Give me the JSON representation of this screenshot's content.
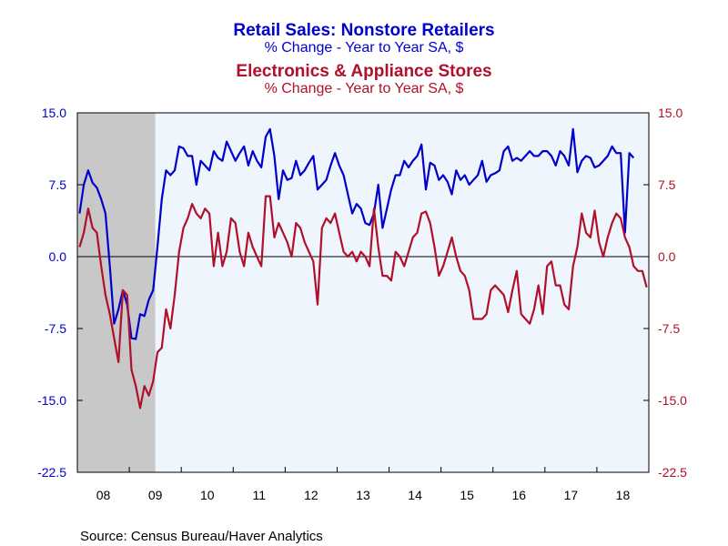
{
  "chart_data": {
    "type": "line",
    "series": [
      {
        "name": "Retail Sales: Nonstore Retailers",
        "subtitle": "% Change - Year to Year    SA, $",
        "color": "#0000cc",
        "axis": "left",
        "start": "2008-01",
        "values": [
          4.5,
          7.5,
          9.0,
          7.7,
          7.2,
          6.0,
          4.5,
          -1.0,
          -7.0,
          -5.5,
          -3.5,
          -5.0,
          -8.5,
          -8.6,
          -6.0,
          -6.2,
          -4.5,
          -3.5,
          1.0,
          6.0,
          9.0,
          8.5,
          9.0,
          11.5,
          11.3,
          10.5,
          10.5,
          7.5,
          10.0,
          9.5,
          9.0,
          11.0,
          10.3,
          10.0,
          12.0,
          11.0,
          10.0,
          10.8,
          11.5,
          9.5,
          11.0,
          10.0,
          9.3,
          12.5,
          13.3,
          10.5,
          6.0,
          9.0,
          8.0,
          8.2,
          10.0,
          8.5,
          9.0,
          9.8,
          10.5,
          7.0,
          7.5,
          8.0,
          9.5,
          10.8,
          9.5,
          8.5,
          6.5,
          4.5,
          5.5,
          5.0,
          3.5,
          3.3,
          4.5,
          7.5,
          3.0,
          5.0,
          7.0,
          8.5,
          8.5,
          10.0,
          9.3,
          10.0,
          10.5,
          11.7,
          7.0,
          9.8,
          9.5,
          8.0,
          8.5,
          7.8,
          6.5,
          9.0,
          8.0,
          8.5,
          7.5,
          8.0,
          8.5,
          10.0,
          7.8,
          8.5,
          8.7,
          9.0,
          11.0,
          11.5,
          10.0,
          10.3,
          10.0,
          10.5,
          11.0,
          10.5,
          10.5,
          11.0,
          11.0,
          10.5,
          9.5,
          11.0,
          10.5,
          9.5,
          13.3,
          8.8,
          10.0,
          10.5,
          10.3,
          9.3,
          9.5,
          10.0,
          10.5,
          11.5,
          10.8,
          10.8,
          2.5,
          10.8,
          10.3
        ]
      },
      {
        "name": "Electronics & Appliance Stores",
        "subtitle": "% Change - Year to Year    SA, $",
        "color": "#b0102a",
        "axis": "right",
        "start": "2008-01",
        "values": [
          1.0,
          2.5,
          5.0,
          3.0,
          2.5,
          -1.0,
          -4.0,
          -6.0,
          -8.5,
          -11.0,
          -3.5,
          -4.0,
          -11.8,
          -13.5,
          -15.8,
          -13.5,
          -14.5,
          -13.0,
          -10.0,
          -9.5,
          -5.5,
          -7.5,
          -4.0,
          0.5,
          3.0,
          4.0,
          5.5,
          4.5,
          4.0,
          5.0,
          4.5,
          -1.0,
          2.5,
          -1.0,
          0.5,
          4.0,
          3.5,
          0.5,
          -1.0,
          2.5,
          1.0,
          0.0,
          -1.0,
          6.3,
          6.3,
          2.0,
          3.5,
          2.5,
          1.5,
          0.0,
          3.5,
          3.0,
          1.5,
          0.5,
          -0.5,
          -5.0,
          3.0,
          4.0,
          3.5,
          4.5,
          2.5,
          0.5,
          0.0,
          0.5,
          -0.5,
          0.5,
          0.0,
          -1.0,
          5.0,
          1.0,
          -2.0,
          -2.0,
          -2.5,
          0.5,
          0.0,
          -1.0,
          0.5,
          2.0,
          2.5,
          4.5,
          4.7,
          3.5,
          1.0,
          -2.0,
          -1.0,
          0.5,
          2.0,
          0.0,
          -1.5,
          -2.0,
          -3.5,
          -6.5,
          -6.5,
          -6.5,
          -6.0,
          -3.5,
          -3.0,
          -3.5,
          -4.0,
          -5.8,
          -3.5,
          -1.5,
          -6.0,
          -6.5,
          -7.0,
          -5.5,
          -3.0,
          -6.0,
          -1.0,
          -0.5,
          -3.0,
          -3.0,
          -5.0,
          -5.5,
          -1.0,
          1.0,
          4.5,
          2.5,
          2.0,
          4.8,
          1.5,
          0.0,
          2.0,
          3.5,
          4.5,
          4.0,
          2.0,
          1.0,
          -1.0,
          -1.5,
          -1.5,
          -3.2
        ]
      }
    ],
    "x_ticks": [
      "08",
      "09",
      "10",
      "11",
      "12",
      "13",
      "14",
      "15",
      "16",
      "17",
      "18"
    ],
    "y_left_ticks": [
      "15.0",
      "7.5",
      "0.0",
      "-7.5",
      "-15.0",
      "-22.5"
    ],
    "y_right_ticks": [
      "15.0",
      "7.5",
      "0.0",
      "-7.5",
      "-15.0",
      "-22.5"
    ],
    "ylim": [
      -22.5,
      15.0
    ],
    "x_range": [
      "2008-01",
      "2018-12"
    ],
    "recession_shading": [
      "2008-01",
      "2009-06"
    ],
    "zero_line": true,
    "grid": false,
    "plot_background": "#eef5fd",
    "recession_color": "#c8c8c8",
    "source": "Source:  Census Bureau/Haver Analytics"
  }
}
